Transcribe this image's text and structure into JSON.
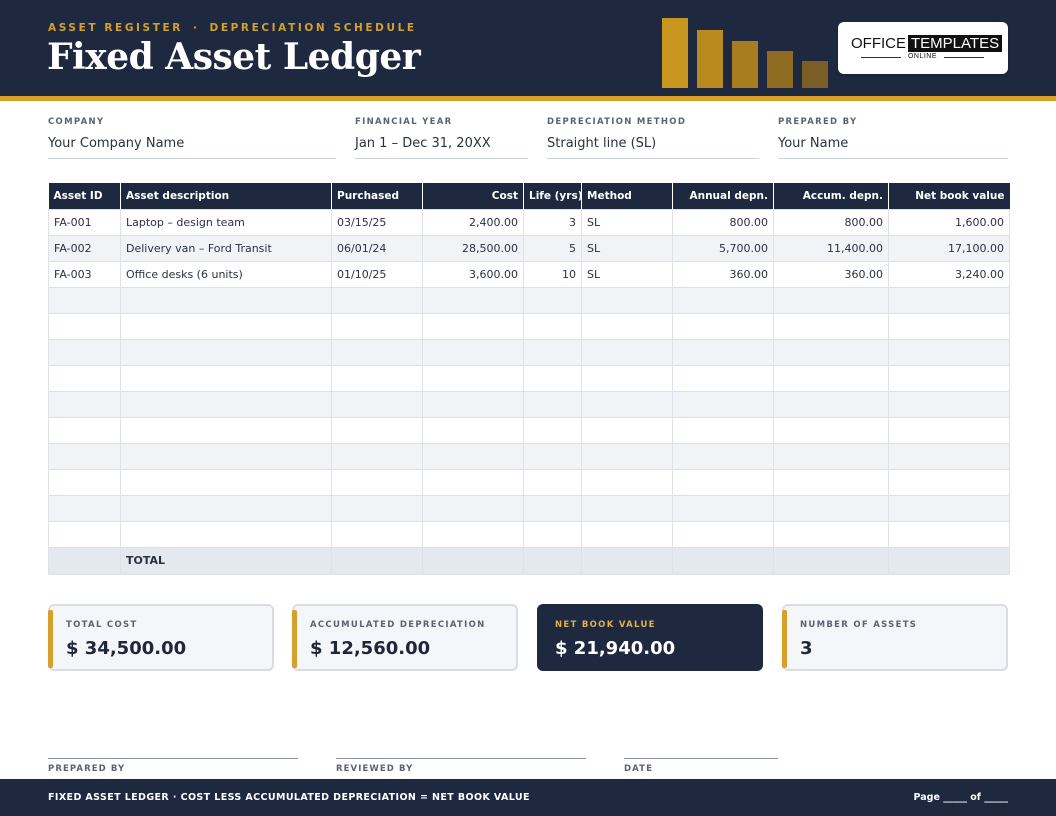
{
  "header": {
    "eyebrow_left": "ASSET REGISTER",
    "eyebrow_sep": "·",
    "eyebrow_right": "DEPRECIATION SCHEDULE",
    "title": "Fixed Asset Ledger",
    "logo_main_left": "OFFICE",
    "logo_main_right": "TEMPLATES",
    "logo_sub": "ONLINE"
  },
  "colors": {
    "navy": "#1e2940",
    "gold": "#d6a12a",
    "row_alt": "#f1f3f7"
  },
  "fields": {
    "company": {
      "label": "COMPANY",
      "value": "Your Company Name"
    },
    "financial_year": {
      "label": "FINANCIAL YEAR",
      "value": "Jan 1 – Dec 31, 20XX"
    },
    "method": {
      "label": "DEPRECIATION METHOD",
      "value": "Straight line (SL)"
    },
    "prepared_by": {
      "label": "PREPARED BY",
      "value": "Your Name"
    }
  },
  "table": {
    "headers": [
      "Asset ID",
      "Asset description",
      "Purchased",
      "Cost",
      "Life (yrs)",
      "Method",
      "Annual depn.",
      "Accum. depn.",
      "Net book value"
    ],
    "rows": [
      [
        "FA-001",
        "Laptop – design team",
        "03/15/25",
        "2,400.00",
        "3",
        "SL",
        "800.00",
        "800.00",
        "1,600.00"
      ],
      [
        "FA-002",
        "Delivery van – Ford Transit",
        "06/01/24",
        "28,500.00",
        "5",
        "SL",
        "5,700.00",
        "11,400.00",
        "17,100.00"
      ],
      [
        "FA-003",
        "Office desks (6 units)",
        "01/10/25",
        "3,600.00",
        "10",
        "SL",
        "360.00",
        "360.00",
        "3,240.00"
      ],
      [
        "",
        "",
        "",
        "",
        "",
        "",
        "",
        "",
        ""
      ],
      [
        "",
        "",
        "",
        "",
        "",
        "",
        "",
        "",
        ""
      ],
      [
        "",
        "",
        "",
        "",
        "",
        "",
        "",
        "",
        ""
      ],
      [
        "",
        "",
        "",
        "",
        "",
        "",
        "",
        "",
        ""
      ],
      [
        "",
        "",
        "",
        "",
        "",
        "",
        "",
        "",
        ""
      ],
      [
        "",
        "",
        "",
        "",
        "",
        "",
        "",
        "",
        ""
      ],
      [
        "",
        "",
        "",
        "",
        "",
        "",
        "",
        "",
        ""
      ],
      [
        "",
        "",
        "",
        "",
        "",
        "",
        "",
        "",
        ""
      ],
      [
        "",
        "",
        "",
        "",
        "",
        "",
        "",
        "",
        ""
      ],
      [
        "",
        "",
        "",
        "",
        "",
        "",
        "",
        "",
        ""
      ]
    ],
    "total_label": "TOTAL"
  },
  "summary": {
    "total_cost": {
      "label": "TOTAL COST",
      "value": "$ 34,500.00"
    },
    "accumulated": {
      "label": "ACCUMULATED DEPRECIATION",
      "value": "$ 12,560.00"
    },
    "net_book": {
      "label": "NET BOOK VALUE",
      "value": "$ 21,940.00"
    },
    "count": {
      "label": "NUMBER OF ASSETS",
      "value": "3"
    }
  },
  "signatures": {
    "prepared": "PREPARED BY",
    "reviewed": "REVIEWED BY",
    "date": "DATE"
  },
  "footer": {
    "text": "FIXED ASSET LEDGER  ·  COST LESS ACCUMULATED DEPRECIATION = NET BOOK VALUE",
    "page": "Page _____ of _____"
  }
}
